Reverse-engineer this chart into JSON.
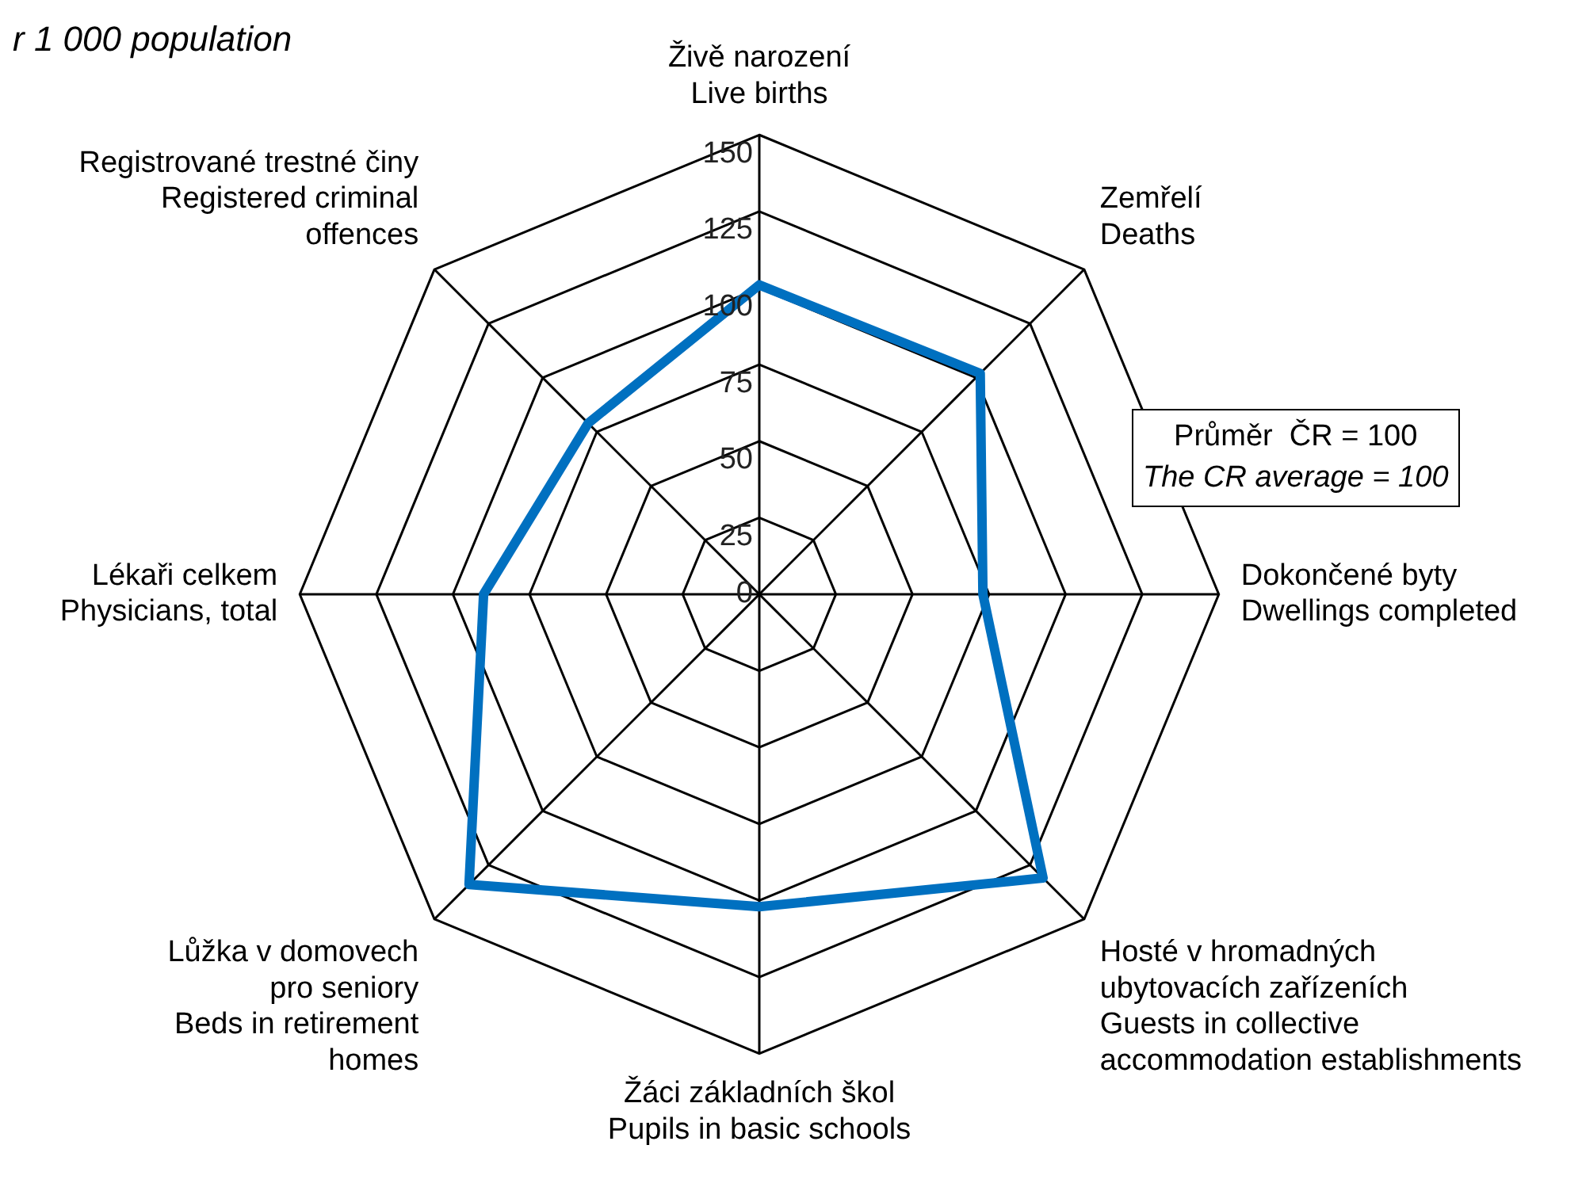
{
  "chart_data": {
    "type": "radar",
    "subtitle": "r 1 000 population",
    "categories": [
      "Živě narození\nLive births",
      "Zemřelí\nDeaths",
      "Dokončené byty\nDwellings completed",
      "Hosté v hromadných\nubytovacích zařízeních\nGuests in collective\naccommodation establishments",
      "Žáci základních škol\nPupils in basic schools",
      "Lůžka v domovech\npro seniory\nBeds in retirement\nhomes",
      "Lékaři celkem\nPhysicians, total",
      "Registrované trestné činy\nRegistered criminal\noffences"
    ],
    "series": [
      {
        "color": "#0070c0",
        "values": [
          101,
          102,
          73,
          131,
          102,
          134,
          90,
          79
        ]
      }
    ],
    "ylim": [
      0,
      150
    ],
    "yticks": [
      0,
      25,
      50,
      75,
      100,
      125,
      150
    ],
    "grid": true,
    "legend": false,
    "marker": "none",
    "annotations": [
      "Průměr  ČR = 100",
      "The CR average = 100"
    ]
  }
}
